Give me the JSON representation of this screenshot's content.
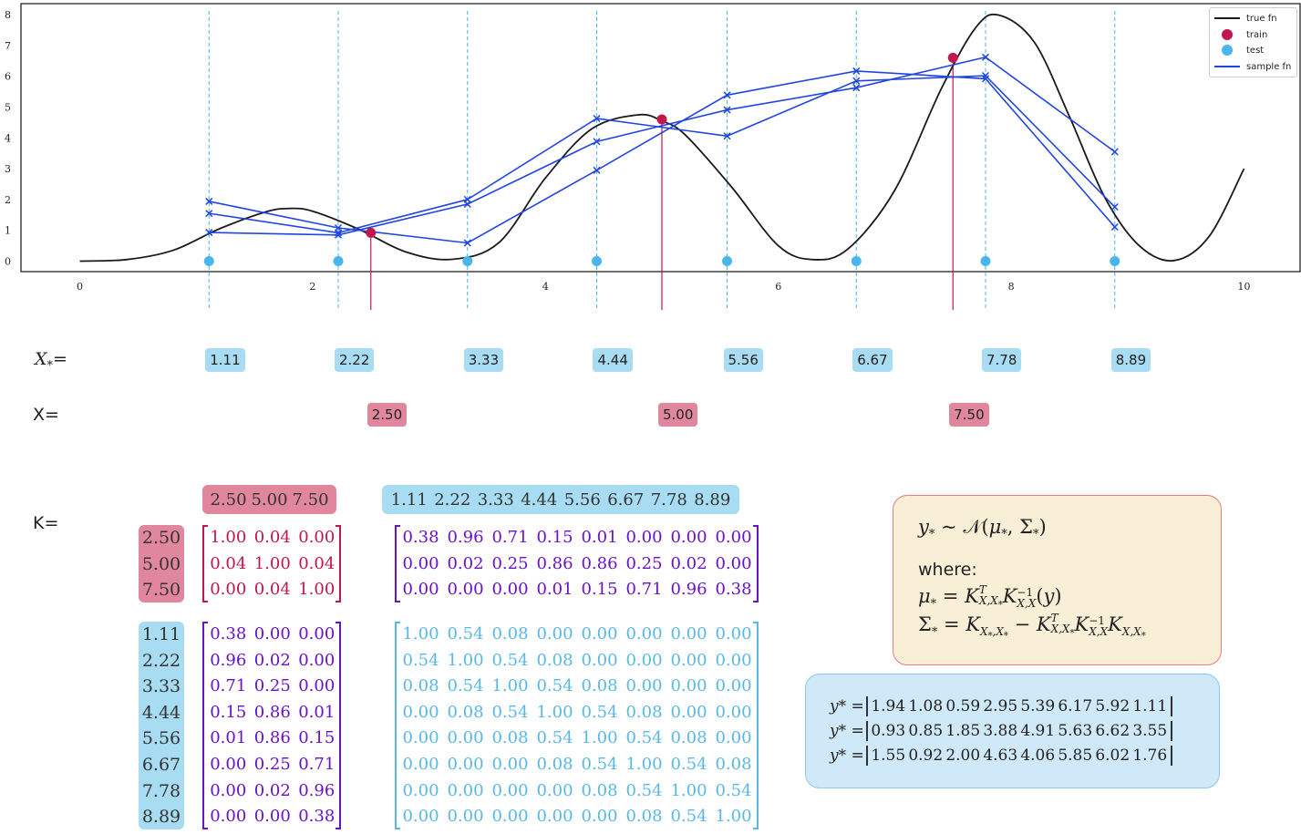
{
  "chart_data": {
    "type": "line",
    "xlim": [
      -0.5,
      10.5
    ],
    "ylim": [
      -0.35,
      8.35
    ],
    "x_ticks": [
      "0",
      "2",
      "4",
      "6",
      "8",
      "10"
    ],
    "y_ticks": [
      "0",
      "1",
      "2",
      "3",
      "4",
      "5",
      "6",
      "7",
      "8"
    ],
    "legend": [
      "true fn",
      "train",
      "test",
      "sample fn"
    ],
    "legend_position": "top-right",
    "grid": false,
    "true_fn": {
      "x": [
        0,
        0.4,
        0.8,
        1.2,
        1.6,
        1.8,
        2.0,
        2.4,
        2.8,
        3.2,
        3.6,
        4.0,
        4.4,
        4.8,
        5.0,
        5.2,
        5.6,
        6.0,
        6.3,
        6.6,
        7.0,
        7.4,
        7.7,
        7.9,
        8.2,
        8.5,
        8.8,
        9.1,
        9.4,
        9.7,
        10.0
      ],
      "y": [
        0.0,
        0.05,
        0.35,
        1.05,
        1.6,
        1.71,
        1.62,
        1.03,
        0.3,
        0.06,
        0.6,
        2.7,
        4.3,
        4.75,
        4.55,
        4.1,
        2.4,
        0.5,
        0.05,
        0.4,
        2.3,
        5.6,
        7.6,
        7.98,
        7.1,
        4.7,
        2.1,
        0.5,
        0.02,
        0.8,
        3.0
      ]
    },
    "train": {
      "x": [
        2.5,
        5.0,
        7.5
      ],
      "y": [
        0.92,
        4.6,
        6.6
      ]
    },
    "test_x": [
      1.11,
      2.22,
      3.33,
      4.44,
      5.56,
      6.67,
      7.78,
      8.89
    ],
    "series": [
      {
        "values": [
          1.94,
          1.08,
          0.59,
          2.95,
          5.39,
          6.17,
          5.92,
          1.11
        ]
      },
      {
        "values": [
          0.93,
          0.85,
          1.85,
          3.88,
          4.91,
          5.63,
          6.62,
          3.55
        ]
      },
      {
        "values": [
          1.55,
          0.92,
          2.0,
          4.63,
          4.06,
          5.85,
          6.02,
          1.76
        ]
      }
    ],
    "colors": {
      "true_fn": "#1a1a1a",
      "train": "#c2174d",
      "test": "#48b5ec",
      "sample": "#2146e0"
    }
  },
  "labels": {
    "xstar": "X",
    "xstar_sub": "*",
    "eq": "=",
    "x": "X=",
    "k": "K="
  },
  "test_chips": [
    "1.11",
    "2.22",
    "3.33",
    "4.44",
    "5.56",
    "6.67",
    "7.78",
    "8.89"
  ],
  "train_chips": [
    "2.50",
    "5.00",
    "7.50"
  ],
  "kernel": {
    "train_train": [
      [
        "1.00",
        "0.04",
        "0.00"
      ],
      [
        "0.04",
        "1.00",
        "0.04"
      ],
      [
        "0.00",
        "0.04",
        "1.00"
      ]
    ],
    "train_test": [
      [
        "0.38",
        "0.96",
        "0.71",
        "0.15",
        "0.01",
        "0.00",
        "0.00",
        "0.00"
      ],
      [
        "0.00",
        "0.02",
        "0.25",
        "0.86",
        "0.86",
        "0.25",
        "0.02",
        "0.00"
      ],
      [
        "0.00",
        "0.00",
        "0.00",
        "0.01",
        "0.15",
        "0.71",
        "0.96",
        "0.38"
      ]
    ],
    "test_train": [
      [
        "0.38",
        "0.00",
        "0.00"
      ],
      [
        "0.96",
        "0.02",
        "0.00"
      ],
      [
        "0.71",
        "0.25",
        "0.00"
      ],
      [
        "0.15",
        "0.86",
        "0.01"
      ],
      [
        "0.01",
        "0.86",
        "0.15"
      ],
      [
        "0.00",
        "0.25",
        "0.71"
      ],
      [
        "0.00",
        "0.02",
        "0.96"
      ],
      [
        "0.00",
        "0.00",
        "0.38"
      ]
    ],
    "test_test": [
      [
        "1.00",
        "0.54",
        "0.08",
        "0.00",
        "0.00",
        "0.00",
        "0.00",
        "0.00"
      ],
      [
        "0.54",
        "1.00",
        "0.54",
        "0.08",
        "0.00",
        "0.00",
        "0.00",
        "0.00"
      ],
      [
        "0.08",
        "0.54",
        "1.00",
        "0.54",
        "0.08",
        "0.00",
        "0.00",
        "0.00"
      ],
      [
        "0.00",
        "0.08",
        "0.54",
        "1.00",
        "0.54",
        "0.08",
        "0.00",
        "0.00"
      ],
      [
        "0.00",
        "0.00",
        "0.08",
        "0.54",
        "1.00",
        "0.54",
        "0.08",
        "0.00"
      ],
      [
        "0.00",
        "0.00",
        "0.00",
        "0.08",
        "0.54",
        "1.00",
        "0.54",
        "0.08"
      ],
      [
        "0.00",
        "0.00",
        "0.00",
        "0.00",
        "0.08",
        "0.54",
        "1.00",
        "0.54"
      ],
      [
        "0.00",
        "0.00",
        "0.00",
        "0.00",
        "0.00",
        "0.08",
        "0.54",
        "1.00"
      ]
    ]
  },
  "formula": {
    "line1": "y* ~ 𝒩(μ*, Σ*)",
    "where": "where:",
    "line2": "μ* = Kᵀ_{X,X*} K⁻¹_{X,X}(y)",
    "line3": "Σ* = K_{X*,X*} − Kᵀ_{X,X*} K⁻¹_{X,X} K_{X,X*}"
  },
  "samples_label": "y* =",
  "matrix_colors": {
    "train": "#c2174d",
    "cross": "#6a12c6",
    "test": "#5ab8e6"
  }
}
